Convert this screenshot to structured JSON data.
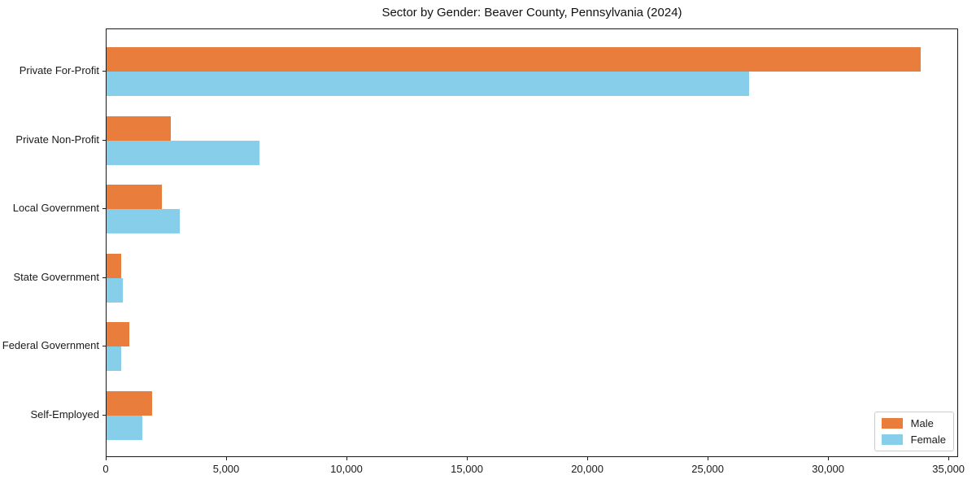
{
  "chart_data": {
    "type": "bar",
    "orientation": "horizontal",
    "title": "Sector by Gender: Beaver County, Pennsylvania (2024)",
    "categories": [
      "Private For-Profit",
      "Private Non-Profit",
      "Local Government",
      "State Government",
      "Federal Government",
      "Self-Employed"
    ],
    "series": [
      {
        "name": "Male",
        "color": "#e87d3c",
        "values": [
          33800,
          2650,
          2310,
          600,
          955,
          1890
        ]
      },
      {
        "name": "Female",
        "color": "#87ceeb",
        "values": [
          26700,
          6340,
          3040,
          675,
          600,
          1500
        ]
      }
    ],
    "xlabel": "",
    "ylabel": "",
    "xlim": [
      0,
      35400
    ],
    "x_ticks": [
      0,
      5000,
      10000,
      15000,
      20000,
      25000,
      30000,
      35000
    ],
    "x_tick_labels": [
      "0",
      "5,000",
      "10,000",
      "15,000",
      "20,000",
      "25,000",
      "30,000",
      "35,000"
    ],
    "grid": false,
    "legend_position": "lower right"
  }
}
